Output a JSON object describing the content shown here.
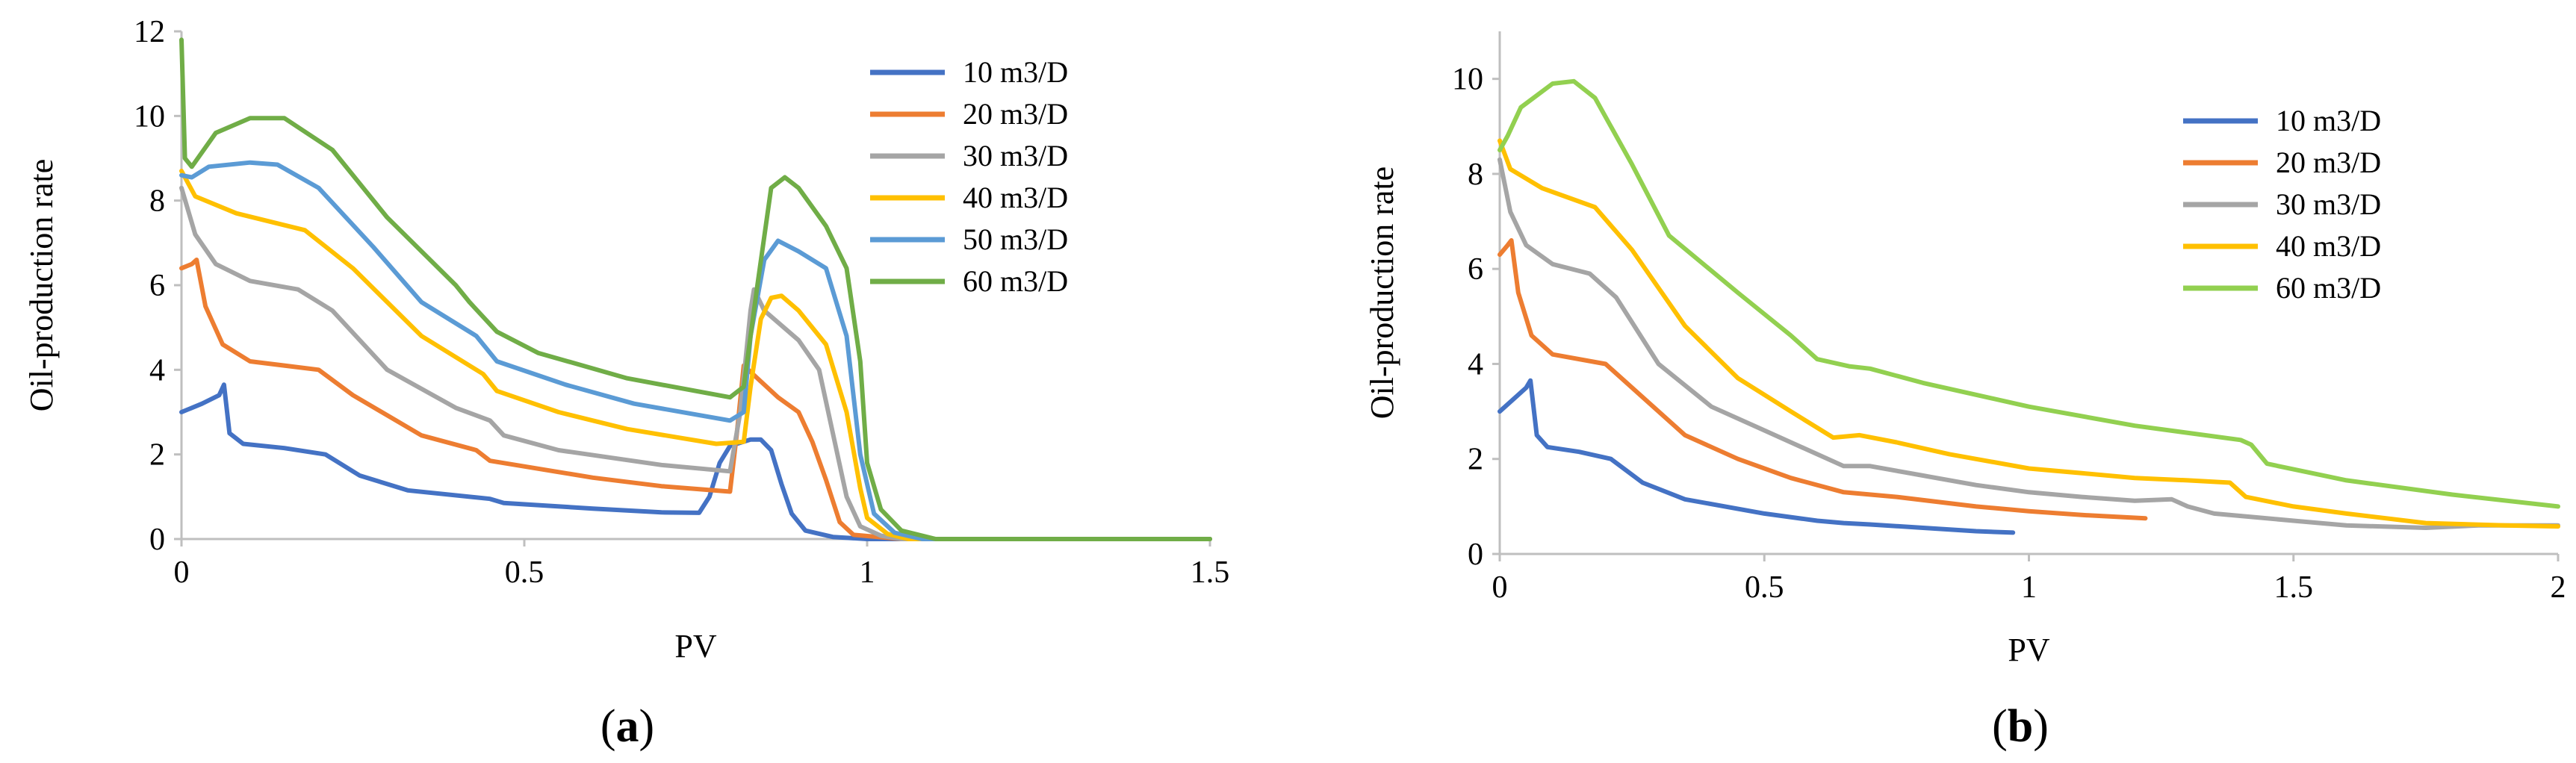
{
  "chart_data": [
    {
      "type": "line",
      "panel_label": "(a)",
      "caption_letter": "a",
      "xlabel": "PV",
      "ylabel": "Oil-production rate",
      "xlim": [
        0,
        1.5
      ],
      "ylim": [
        0,
        12
      ],
      "xticks": [
        0,
        0.5,
        1,
        1.5
      ],
      "xtick_labels": [
        "0",
        "0.5",
        "1",
        "1.5"
      ],
      "yticks": [
        0,
        2,
        4,
        6,
        8,
        10,
        12
      ],
      "ytick_labels": [
        "0",
        "2",
        "4",
        "6",
        "8",
        "10",
        "12"
      ],
      "legend_position": "top-right",
      "series": [
        {
          "name": "10 m3/D",
          "color": "#4472C4",
          "points": [
            [
              0,
              3
            ],
            [
              0.03,
              3.2
            ],
            [
              0.055,
              3.4
            ],
            [
              0.062,
              3.65
            ],
            [
              0.07,
              2.5
            ],
            [
              0.09,
              2.25
            ],
            [
              0.15,
              2.15
            ],
            [
              0.21,
              2.0
            ],
            [
              0.26,
              1.5
            ],
            [
              0.33,
              1.15
            ],
            [
              0.45,
              0.95
            ],
            [
              0.47,
              0.85
            ],
            [
              0.6,
              0.72
            ],
            [
              0.7,
              0.63
            ],
            [
              0.755,
              0.62
            ],
            [
              0.77,
              1.0
            ],
            [
              0.785,
              1.8
            ],
            [
              0.8,
              2.2
            ],
            [
              0.83,
              2.35
            ],
            [
              0.845,
              2.35
            ],
            [
              0.86,
              2.1
            ],
            [
              0.875,
              1.3
            ],
            [
              0.89,
              0.6
            ],
            [
              0.91,
              0.2
            ],
            [
              0.95,
              0.05
            ],
            [
              1.0,
              0
            ],
            [
              1.5,
              0
            ]
          ]
        },
        {
          "name": "20 m3/D",
          "color": "#ED7D31",
          "points": [
            [
              0,
              6.4
            ],
            [
              0.015,
              6.5
            ],
            [
              0.022,
              6.6
            ],
            [
              0.035,
              5.5
            ],
            [
              0.06,
              4.6
            ],
            [
              0.1,
              4.2
            ],
            [
              0.2,
              4.0
            ],
            [
              0.25,
              3.4
            ],
            [
              0.35,
              2.45
            ],
            [
              0.43,
              2.1
            ],
            [
              0.45,
              1.85
            ],
            [
              0.6,
              1.45
            ],
            [
              0.7,
              1.25
            ],
            [
              0.8,
              1.12
            ],
            [
              0.81,
              2.5
            ],
            [
              0.82,
              4.1
            ],
            [
              0.84,
              3.8
            ],
            [
              0.87,
              3.35
            ],
            [
              0.9,
              3.0
            ],
            [
              0.92,
              2.3
            ],
            [
              0.94,
              1.4
            ],
            [
              0.96,
              0.4
            ],
            [
              0.98,
              0.1
            ],
            [
              1.05,
              0
            ],
            [
              1.5,
              0
            ]
          ]
        },
        {
          "name": "30 m3/D",
          "color": "#A5A5A5",
          "points": [
            [
              0,
              8.3
            ],
            [
              0.02,
              7.2
            ],
            [
              0.05,
              6.5
            ],
            [
              0.1,
              6.1
            ],
            [
              0.17,
              5.9
            ],
            [
              0.22,
              5.4
            ],
            [
              0.3,
              4.0
            ],
            [
              0.4,
              3.1
            ],
            [
              0.45,
              2.8
            ],
            [
              0.47,
              2.45
            ],
            [
              0.55,
              2.1
            ],
            [
              0.7,
              1.75
            ],
            [
              0.8,
              1.6
            ],
            [
              0.815,
              3.0
            ],
            [
              0.83,
              5.4
            ],
            [
              0.835,
              5.9
            ],
            [
              0.85,
              5.4
            ],
            [
              0.9,
              4.7
            ],
            [
              0.93,
              4.0
            ],
            [
              0.95,
              2.5
            ],
            [
              0.97,
              1.0
            ],
            [
              0.99,
              0.3
            ],
            [
              1.02,
              0.08
            ],
            [
              1.05,
              0
            ],
            [
              1.5,
              0
            ]
          ]
        },
        {
          "name": "40 m3/D",
          "color": "#FFC000",
          "points": [
            [
              0,
              8.7
            ],
            [
              0.02,
              8.1
            ],
            [
              0.08,
              7.7
            ],
            [
              0.18,
              7.3
            ],
            [
              0.25,
              6.4
            ],
            [
              0.35,
              4.8
            ],
            [
              0.44,
              3.9
            ],
            [
              0.46,
              3.5
            ],
            [
              0.55,
              3.0
            ],
            [
              0.65,
              2.6
            ],
            [
              0.78,
              2.25
            ],
            [
              0.82,
              2.3
            ],
            [
              0.83,
              3.6
            ],
            [
              0.845,
              5.2
            ],
            [
              0.86,
              5.7
            ],
            [
              0.875,
              5.75
            ],
            [
              0.9,
              5.4
            ],
            [
              0.94,
              4.6
            ],
            [
              0.97,
              3.0
            ],
            [
              0.99,
              1.2
            ],
            [
              1.0,
              0.5
            ],
            [
              1.03,
              0.12
            ],
            [
              1.06,
              0
            ],
            [
              1.5,
              0
            ]
          ]
        },
        {
          "name": "50 m3/D",
          "color": "#5B9BD5",
          "points": [
            [
              0,
              8.6
            ],
            [
              0.015,
              8.55
            ],
            [
              0.04,
              8.8
            ],
            [
              0.1,
              8.9
            ],
            [
              0.14,
              8.85
            ],
            [
              0.2,
              8.3
            ],
            [
              0.28,
              6.9
            ],
            [
              0.35,
              5.6
            ],
            [
              0.43,
              4.8
            ],
            [
              0.46,
              4.2
            ],
            [
              0.56,
              3.65
            ],
            [
              0.66,
              3.2
            ],
            [
              0.8,
              2.8
            ],
            [
              0.82,
              3.0
            ],
            [
              0.83,
              4.8
            ],
            [
              0.85,
              6.6
            ],
            [
              0.87,
              7.05
            ],
            [
              0.9,
              6.8
            ],
            [
              0.94,
              6.4
            ],
            [
              0.97,
              4.8
            ],
            [
              0.99,
              2.0
            ],
            [
              1.01,
              0.6
            ],
            [
              1.04,
              0.15
            ],
            [
              1.08,
              0
            ],
            [
              1.5,
              0
            ]
          ]
        },
        {
          "name": "60 m3/D",
          "color": "#70AD47",
          "points": [
            [
              0,
              11.8
            ],
            [
              0.005,
              9.0
            ],
            [
              0.015,
              8.8
            ],
            [
              0.05,
              9.6
            ],
            [
              0.1,
              9.95
            ],
            [
              0.15,
              9.95
            ],
            [
              0.22,
              9.2
            ],
            [
              0.3,
              7.6
            ],
            [
              0.4,
              6.0
            ],
            [
              0.42,
              5.6
            ],
            [
              0.46,
              4.9
            ],
            [
              0.52,
              4.4
            ],
            [
              0.65,
              3.8
            ],
            [
              0.8,
              3.35
            ],
            [
              0.82,
              3.6
            ],
            [
              0.84,
              6.0
            ],
            [
              0.86,
              8.3
            ],
            [
              0.88,
              8.55
            ],
            [
              0.9,
              8.3
            ],
            [
              0.94,
              7.4
            ],
            [
              0.97,
              6.4
            ],
            [
              0.99,
              4.2
            ],
            [
              1.0,
              1.8
            ],
            [
              1.02,
              0.7
            ],
            [
              1.05,
              0.2
            ],
            [
              1.1,
              0
            ],
            [
              1.5,
              0
            ]
          ]
        }
      ]
    },
    {
      "type": "line",
      "panel_label": "(b)",
      "caption_letter": "b",
      "xlabel": "PV",
      "ylabel": "Oil-production rate",
      "xlim": [
        0,
        2
      ],
      "ylim": [
        0,
        11
      ],
      "xticks": [
        0,
        0.5,
        1,
        1.5,
        2
      ],
      "xtick_labels": [
        "0",
        "0.5",
        "1",
        "1.5",
        "2"
      ],
      "yticks": [
        0,
        2,
        4,
        6,
        8,
        10
      ],
      "ytick_labels": [
        "0",
        "2",
        "4",
        "6",
        "8",
        "10"
      ],
      "legend_position": "top-right",
      "series": [
        {
          "name": "10 m3/D",
          "color": "#4472C4",
          "points": [
            [
              0,
              3.0
            ],
            [
              0.03,
              3.3
            ],
            [
              0.05,
              3.5
            ],
            [
              0.058,
              3.65
            ],
            [
              0.07,
              2.5
            ],
            [
              0.09,
              2.25
            ],
            [
              0.15,
              2.15
            ],
            [
              0.21,
              2.0
            ],
            [
              0.27,
              1.5
            ],
            [
              0.35,
              1.15
            ],
            [
              0.5,
              0.85
            ],
            [
              0.6,
              0.7
            ],
            [
              0.65,
              0.65
            ],
            [
              0.7,
              0.62
            ],
            [
              0.8,
              0.55
            ],
            [
              0.9,
              0.48
            ],
            [
              0.97,
              0.45
            ]
          ]
        },
        {
          "name": "20 m3/D",
          "color": "#ED7D31",
          "points": [
            [
              0,
              6.3
            ],
            [
              0.015,
              6.5
            ],
            [
              0.022,
              6.6
            ],
            [
              0.035,
              5.5
            ],
            [
              0.06,
              4.6
            ],
            [
              0.1,
              4.2
            ],
            [
              0.2,
              4.0
            ],
            [
              0.26,
              3.4
            ],
            [
              0.35,
              2.5
            ],
            [
              0.45,
              2.0
            ],
            [
              0.55,
              1.6
            ],
            [
              0.65,
              1.3
            ],
            [
              0.75,
              1.2
            ],
            [
              0.9,
              1.0
            ],
            [
              1.0,
              0.9
            ],
            [
              1.1,
              0.82
            ],
            [
              1.22,
              0.75
            ]
          ]
        },
        {
          "name": "30 m3/D",
          "color": "#A5A5A5",
          "points": [
            [
              0,
              8.3
            ],
            [
              0.02,
              7.2
            ],
            [
              0.05,
              6.5
            ],
            [
              0.1,
              6.1
            ],
            [
              0.17,
              5.9
            ],
            [
              0.22,
              5.4
            ],
            [
              0.3,
              4.0
            ],
            [
              0.4,
              3.1
            ],
            [
              0.5,
              2.6
            ],
            [
              0.6,
              2.1
            ],
            [
              0.65,
              1.85
            ],
            [
              0.7,
              1.85
            ],
            [
              0.8,
              1.65
            ],
            [
              0.9,
              1.45
            ],
            [
              1.0,
              1.3
            ],
            [
              1.1,
              1.2
            ],
            [
              1.2,
              1.12
            ],
            [
              1.27,
              1.15
            ],
            [
              1.3,
              1.0
            ],
            [
              1.35,
              0.85
            ],
            [
              1.5,
              0.7
            ],
            [
              1.6,
              0.6
            ],
            [
              1.75,
              0.55
            ],
            [
              1.85,
              0.6
            ],
            [
              2.0,
              0.6
            ]
          ]
        },
        {
          "name": "40 m3/D",
          "color": "#FFC000",
          "points": [
            [
              0,
              8.7
            ],
            [
              0.02,
              8.1
            ],
            [
              0.08,
              7.7
            ],
            [
              0.18,
              7.3
            ],
            [
              0.25,
              6.4
            ],
            [
              0.35,
              4.8
            ],
            [
              0.45,
              3.7
            ],
            [
              0.55,
              3.0
            ],
            [
              0.63,
              2.45
            ],
            [
              0.68,
              2.5
            ],
            [
              0.75,
              2.35
            ],
            [
              0.85,
              2.1
            ],
            [
              1.0,
              1.8
            ],
            [
              1.1,
              1.7
            ],
            [
              1.2,
              1.6
            ],
            [
              1.3,
              1.55
            ],
            [
              1.38,
              1.5
            ],
            [
              1.41,
              1.2
            ],
            [
              1.5,
              1.0
            ],
            [
              1.6,
              0.85
            ],
            [
              1.75,
              0.65
            ],
            [
              1.9,
              0.6
            ],
            [
              2.0,
              0.58
            ]
          ]
        },
        {
          "name": "60 m3/D",
          "color": "#92D050",
          "points": [
            [
              0,
              8.5
            ],
            [
              0.015,
              8.8
            ],
            [
              0.04,
              9.4
            ],
            [
              0.1,
              9.9
            ],
            [
              0.14,
              9.95
            ],
            [
              0.18,
              9.6
            ],
            [
              0.25,
              8.2
            ],
            [
              0.32,
              6.7
            ],
            [
              0.45,
              5.5
            ],
            [
              0.55,
              4.6
            ],
            [
              0.6,
              4.1
            ],
            [
              0.66,
              3.95
            ],
            [
              0.7,
              3.9
            ],
            [
              0.8,
              3.6
            ],
            [
              0.9,
              3.35
            ],
            [
              1.0,
              3.1
            ],
            [
              1.2,
              2.7
            ],
            [
              1.4,
              2.4
            ],
            [
              1.42,
              2.3
            ],
            [
              1.45,
              1.9
            ],
            [
              1.6,
              1.55
            ],
            [
              1.8,
              1.25
            ],
            [
              2.0,
              1.0
            ]
          ]
        }
      ]
    }
  ]
}
